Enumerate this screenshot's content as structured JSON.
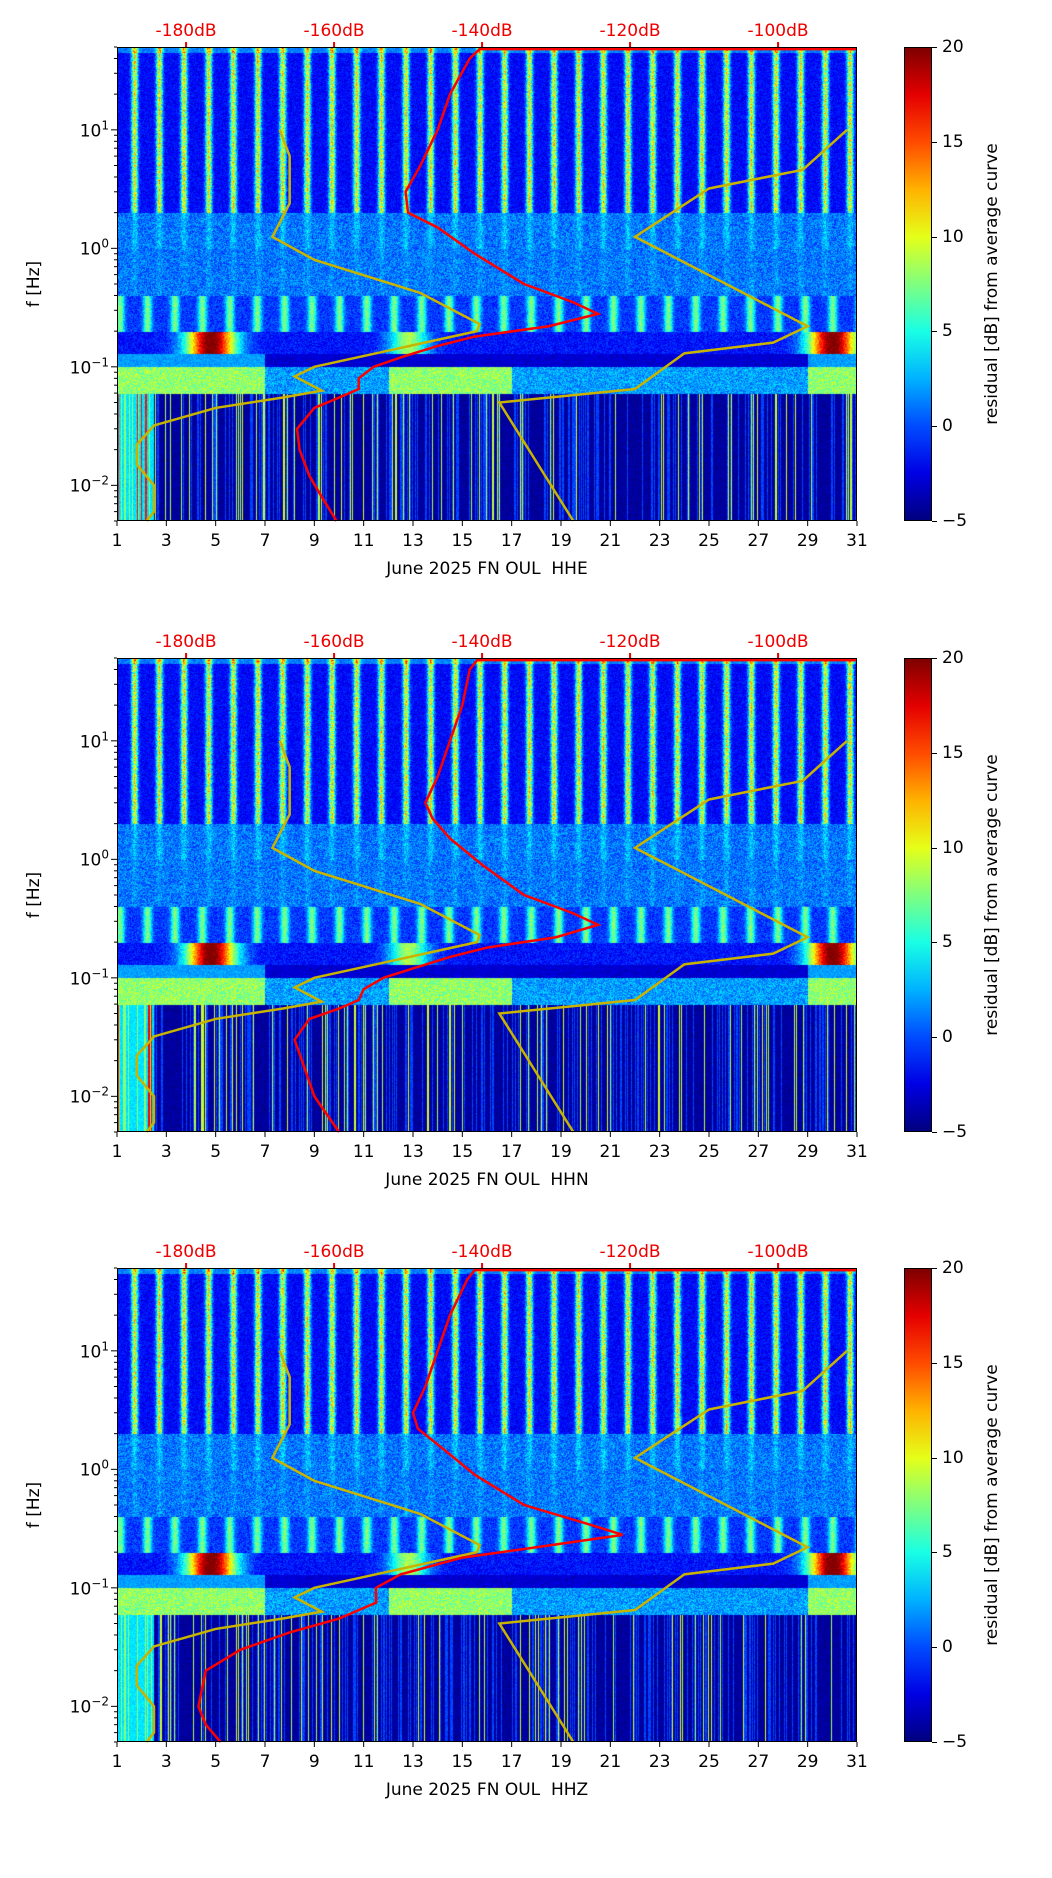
{
  "chart_data": {
    "type": "heatmap",
    "xlim": [
      1,
      31
    ],
    "ylim": [
      0.005,
      50
    ],
    "yscale": "log",
    "x_ticks": [
      "1",
      "3",
      "5",
      "7",
      "9",
      "11",
      "13",
      "15",
      "17",
      "19",
      "21",
      "23",
      "25",
      "27",
      "29",
      "31"
    ],
    "x_tick_values": [
      1,
      3,
      5,
      7,
      9,
      11,
      13,
      15,
      17,
      19,
      21,
      23,
      25,
      27,
      29,
      31
    ],
    "y_ticks": [
      {
        "base": "10",
        "exp": "−2",
        "value": 0.01
      },
      {
        "base": "10",
        "exp": "−1",
        "value": 0.1
      },
      {
        "base": "10",
        "exp": "0",
        "value": 1
      },
      {
        "base": "10",
        "exp": "1",
        "value": 10
      }
    ],
    "ylabel": "f [Hz]",
    "top_axis": {
      "labels": [
        "-180dB",
        "-160dB",
        "-140dB",
        "-120dB",
        "-100dB"
      ],
      "db_values": [
        -180,
        -160,
        -140,
        -120,
        -100
      ],
      "day_positions": [
        3.8,
        9.8,
        15.8,
        21.8,
        27.8
      ],
      "color": "#ff0000"
    },
    "colorbar": {
      "label": "residual [dB] from average curve",
      "ticks": [
        "20",
        "15",
        "10",
        "5",
        "0",
        "−5"
      ],
      "tick_values": [
        20,
        15,
        10,
        5,
        0,
        -5
      ],
      "range": [
        -5,
        20
      ],
      "colormap": "jet"
    },
    "yellow_curve_color": "#c8b400",
    "red_curve_color": "#ff0000",
    "yellow_curve": [
      [
        [
          7.6,
          10
        ],
        [
          8.0,
          6
        ],
        [
          8.0,
          2.4
        ],
        [
          7.3,
          1.25
        ],
        [
          9.0,
          0.8
        ],
        [
          13.3,
          0.42
        ],
        [
          15.7,
          0.23
        ],
        [
          15.6,
          0.2
        ],
        [
          9.0,
          0.1
        ],
        [
          8.2,
          0.083
        ],
        [
          9.3,
          0.063
        ],
        [
          7.7,
          0.055
        ],
        [
          5.0,
          0.045
        ],
        [
          2.5,
          0.032
        ],
        [
          1.8,
          0.022
        ],
        [
          1.8,
          0.015
        ],
        [
          2.5,
          0.01
        ],
        [
          2.5,
          0.006
        ],
        [
          2.2,
          0.005
        ]
      ],
      [
        [
          19.5,
          0.005
        ],
        [
          16.5,
          0.05
        ],
        [
          22.0,
          0.065
        ],
        [
          24.0,
          0.13
        ],
        [
          27.6,
          0.16
        ],
        [
          29.0,
          0.22
        ],
        [
          22.0,
          1.25
        ],
        [
          25.0,
          3.2
        ],
        [
          28.8,
          4.6
        ],
        [
          30.6,
          10
        ]
      ]
    ],
    "panels": [
      {
        "xlabel": "June 2025 FN OUL  HHE",
        "red_curve": [
          [
            9.9,
            0.005
          ],
          [
            9.3,
            0.008
          ],
          [
            8.8,
            0.012
          ],
          [
            8.4,
            0.02
          ],
          [
            8.3,
            0.03
          ],
          [
            9.0,
            0.045
          ],
          [
            10.0,
            0.055
          ],
          [
            10.8,
            0.065
          ],
          [
            10.8,
            0.08
          ],
          [
            11.4,
            0.1
          ],
          [
            12.5,
            0.12
          ],
          [
            14.0,
            0.15
          ],
          [
            15.5,
            0.18
          ],
          [
            18.5,
            0.22
          ],
          [
            20.5,
            0.28
          ],
          [
            19.5,
            0.35
          ],
          [
            17.5,
            0.5
          ],
          [
            15.5,
            0.9
          ],
          [
            14.0,
            1.5
          ],
          [
            12.8,
            2.0
          ],
          [
            12.7,
            3.0
          ],
          [
            13.3,
            5.0
          ],
          [
            14.0,
            10
          ],
          [
            14.5,
            20
          ],
          [
            15.3,
            40
          ],
          [
            15.7,
            48
          ],
          [
            31,
            48
          ]
        ]
      },
      {
        "xlabel": "June 2025 FN OUL  HHN",
        "red_curve": [
          [
            10.0,
            0.005
          ],
          [
            9.0,
            0.01
          ],
          [
            8.5,
            0.02
          ],
          [
            8.2,
            0.03
          ],
          [
            8.8,
            0.045
          ],
          [
            10.0,
            0.055
          ],
          [
            10.8,
            0.065
          ],
          [
            11.0,
            0.08
          ],
          [
            11.8,
            0.1
          ],
          [
            13.0,
            0.12
          ],
          [
            14.5,
            0.15
          ],
          [
            16.0,
            0.18
          ],
          [
            18.8,
            0.22
          ],
          [
            20.5,
            0.28
          ],
          [
            19.5,
            0.35
          ],
          [
            17.5,
            0.5
          ],
          [
            15.8,
            0.9
          ],
          [
            14.5,
            1.5
          ],
          [
            13.8,
            2.2
          ],
          [
            13.5,
            3.0
          ],
          [
            14.0,
            5.0
          ],
          [
            14.5,
            10
          ],
          [
            15.0,
            20
          ],
          [
            15.3,
            40
          ],
          [
            15.6,
            48
          ],
          [
            31,
            48
          ]
        ]
      },
      {
        "xlabel": "June 2025 FN OUL  HHZ",
        "red_curve": [
          [
            5.2,
            0.005
          ],
          [
            4.6,
            0.007
          ],
          [
            4.3,
            0.01
          ],
          [
            4.6,
            0.02
          ],
          [
            6.0,
            0.03
          ],
          [
            8.0,
            0.042
          ],
          [
            10.0,
            0.055
          ],
          [
            11.5,
            0.075
          ],
          [
            11.5,
            0.1
          ],
          [
            12.5,
            0.13
          ],
          [
            15.0,
            0.18
          ],
          [
            18.0,
            0.22
          ],
          [
            21.5,
            0.28
          ],
          [
            20.0,
            0.35
          ],
          [
            17.5,
            0.5
          ],
          [
            15.5,
            0.9
          ],
          [
            14.2,
            1.5
          ],
          [
            13.2,
            2.2
          ],
          [
            13.0,
            3.0
          ],
          [
            13.5,
            5.0
          ],
          [
            14.0,
            10
          ],
          [
            14.5,
            20
          ],
          [
            15.2,
            40
          ],
          [
            15.5,
            48
          ],
          [
            31,
            48
          ]
        ]
      }
    ]
  }
}
